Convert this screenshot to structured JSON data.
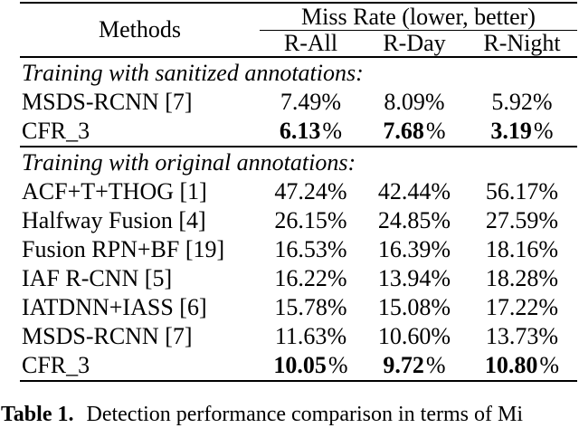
{
  "table": {
    "header": {
      "methods_label": "Methods",
      "group_label": "Miss Rate (lower, better)",
      "columns": [
        "R-All",
        "R-Day",
        "R-Night"
      ]
    },
    "percent_sign": "%",
    "sections": [
      {
        "title": "Training with sanitized annotations:",
        "rows": [
          {
            "method": "MSDS-RCNN [7]",
            "values": [
              "7.49",
              "8.09",
              "5.92"
            ],
            "bold": false
          },
          {
            "method": "CFR_3",
            "values": [
              "6.13",
              "7.68",
              "3.19"
            ],
            "bold": true
          }
        ]
      },
      {
        "title": "Training with original annotations:",
        "rows": [
          {
            "method": "ACF+T+THOG [1]",
            "values": [
              "47.24",
              "42.44",
              "56.17"
            ],
            "bold": false
          },
          {
            "method": "Halfway Fusion [4]",
            "values": [
              "26.15",
              "24.85",
              "27.59"
            ],
            "bold": false
          },
          {
            "method": "Fusion RPN+BF [19]",
            "values": [
              "16.53",
              "16.39",
              "18.16"
            ],
            "bold": false
          },
          {
            "method": "IAF R-CNN [5]",
            "values": [
              "16.22",
              "13.94",
              "18.28"
            ],
            "bold": false
          },
          {
            "method": "IATDNN+IASS [6]",
            "values": [
              "15.78",
              "15.08",
              "17.22"
            ],
            "bold": false
          },
          {
            "method": "MSDS-RCNN [7]",
            "values": [
              "11.63",
              "10.60",
              "13.73"
            ],
            "bold": false
          },
          {
            "method": "CFR_3",
            "values": [
              "10.05",
              "9.72",
              "10.80"
            ],
            "bold": true
          }
        ]
      }
    ],
    "caption": {
      "label": "Table 1.",
      "text": "Detection performance comparison in terms of Mi"
    }
  }
}
